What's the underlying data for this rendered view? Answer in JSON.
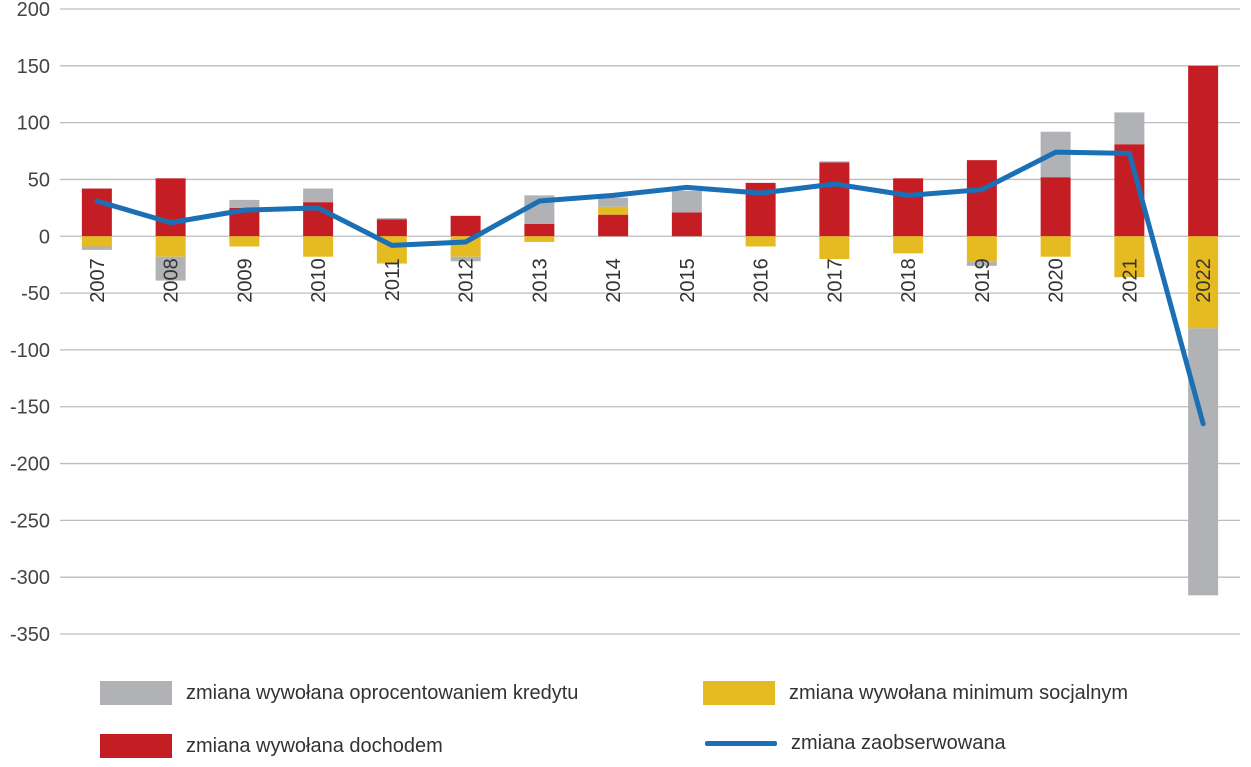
{
  "chart_data": {
    "type": "bar",
    "stacked": true,
    "categories": [
      "2007",
      "2008",
      "2009",
      "2010",
      "2011",
      "2012",
      "2013",
      "2014",
      "2015",
      "2016",
      "2017",
      "2018",
      "2019",
      "2020",
      "2021",
      "2022"
    ],
    "ylim": [
      -350,
      200
    ],
    "yticks": [
      200,
      150,
      100,
      50,
      0,
      -50,
      -100,
      -150,
      -200,
      -250,
      -300,
      -350
    ],
    "grid": true,
    "legend_position": "bottom",
    "series": [
      {
        "name": "zmiana wywołana dochodem",
        "kind": "bar",
        "color": "#c41e24",
        "values": [
          42,
          51,
          25,
          30,
          15,
          18,
          11,
          19,
          21,
          47,
          65,
          51,
          67,
          52,
          81,
          150
        ]
      },
      {
        "name": "zmiana wywołana minimum socjalnym",
        "kind": "bar",
        "color": "#e6bb22",
        "values": [
          -9,
          -18,
          -9,
          -18,
          -24,
          -18,
          -5,
          7,
          0,
          -9,
          -20,
          -15,
          -22,
          -18,
          -36,
          -81
        ]
      },
      {
        "name": "zmiana wywołana oprocentowaniem kredytu",
        "kind": "bar",
        "color": "#b1b2b5",
        "values": [
          -3,
          -21,
          7,
          12,
          1,
          -4,
          25,
          8,
          19,
          0,
          1,
          0,
          -4,
          40,
          28,
          -235
        ]
      },
      {
        "name": "zmiana zaobserwowana",
        "kind": "line",
        "color": "#1a6fb5",
        "values": [
          31,
          12,
          23,
          25,
          -8,
          -5,
          31,
          36,
          43,
          38,
          46,
          36,
          41,
          74,
          73,
          -165
        ]
      }
    ]
  },
  "legend": [
    {
      "label": "zmiana wywołana oprocentowaniem kredytu",
      "color": "#b1b2b5",
      "kind": "bar"
    },
    {
      "label": "zmiana wywołana minimum socjalnym",
      "color": "#e6bb22",
      "kind": "bar"
    },
    {
      "label": "zmiana wywołana dochodem",
      "color": "#c41e24",
      "kind": "bar"
    },
    {
      "label": "zmiana zaobserwowana",
      "color": "#1a6fb5",
      "kind": "line"
    }
  ]
}
